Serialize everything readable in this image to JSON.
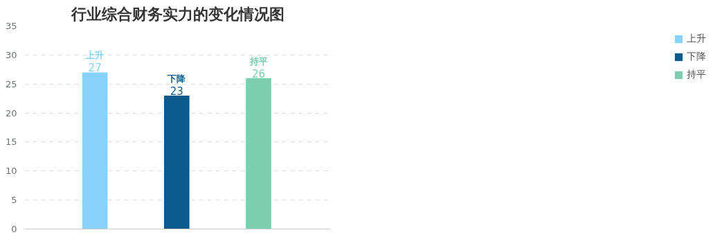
{
  "chart_data": {
    "type": "bar",
    "title": "行业综合财务实力的变化情况图",
    "categories": [
      null,
      null,
      null
    ],
    "series": [
      {
        "name": "上升",
        "color": "#87d3fb",
        "values": [
          27,
          null,
          null
        ]
      },
      {
        "name": "下降",
        "color": "#0b5a8c",
        "values": [
          null,
          23,
          null
        ]
      },
      {
        "name": "持平",
        "color": "#7dcdb0",
        "values": [
          null,
          null,
          26
        ]
      }
    ],
    "ylim": [
      0,
      35
    ],
    "yticks": [
      0,
      5,
      10,
      15,
      20,
      25,
      30,
      35
    ],
    "grid": "y",
    "legend": "right",
    "data_labels": true,
    "tick_labels": "y"
  }
}
